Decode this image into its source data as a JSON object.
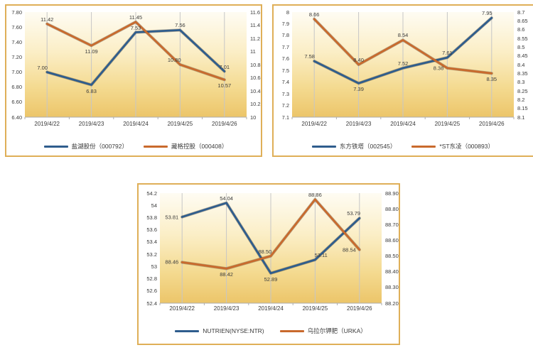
{
  "page": {
    "background": "#ffffff"
  },
  "styles": {
    "panel_border": "#dfaf58",
    "grid_color": "#c6c6c6",
    "axis_line_color": "#adadad",
    "axis_text_color": "#3a3a3a",
    "blue_series_color": "#2f5d8d",
    "orange_series_color": "#c96a2d",
    "plot_gradient": [
      "#fefcf3",
      "#fbeec6",
      "#f4da90",
      "#ecc569"
    ]
  },
  "chart_data": [
    {
      "type": "line",
      "title": "",
      "xlabel": "",
      "ylabel": "",
      "grid": "vertical-only",
      "legend_position": "bottom",
      "categories": [
        "2019/4/22",
        "2019/4/23",
        "2019/4/24",
        "2019/4/25",
        "2019/4/26"
      ],
      "left_axis": {
        "min": 6.4,
        "max": 7.8,
        "ticks": [
          "7.80",
          "7.60",
          "7.40",
          "7.20",
          "7.00",
          "6.80",
          "6.60",
          "6.40"
        ]
      },
      "right_axis": {
        "min": 10,
        "max": 11.6,
        "ticks": [
          "11.6",
          "11.4",
          "11.2",
          "11",
          "10.8",
          "10.6",
          "10.4",
          "10.2",
          "10"
        ]
      },
      "series": [
        {
          "name": "盐湖股份（000792）",
          "axis": "left",
          "color": "#2f5d8d",
          "values": [
            7.0,
            6.83,
            7.53,
            7.56,
            7.01
          ],
          "labels": [
            "7.00",
            "6.83",
            "7.53",
            "7.56",
            "7.01"
          ],
          "label_pos": [
            "tl",
            "b",
            "t",
            "t",
            "t"
          ]
        },
        {
          "name": "藏格控股（000408）",
          "axis": "right",
          "color": "#c96a2d",
          "values": [
            11.42,
            11.09,
            11.45,
            10.8,
            10.57
          ],
          "labels": [
            "11.42",
            "11.09",
            "11.45",
            "10.80",
            "10.57"
          ],
          "label_pos": [
            "t",
            "b",
            "t",
            "tl",
            "b"
          ]
        }
      ]
    },
    {
      "type": "line",
      "title": "",
      "xlabel": "",
      "ylabel": "",
      "grid": "vertical-only",
      "legend_position": "bottom",
      "categories": [
        "2019/4/22",
        "2019/4/23",
        "2019/4/24",
        "2019/4/25",
        "2019/4/26"
      ],
      "left_axis": {
        "min": 7.1,
        "max": 8.0,
        "ticks": [
          "8",
          "7.9",
          "7.8",
          "7.7",
          "7.6",
          "7.5",
          "7.4",
          "7.3",
          "7.2",
          "7.1"
        ]
      },
      "right_axis": {
        "min": 8.1,
        "max": 8.7,
        "ticks": [
          "8.7",
          "8.65",
          "8.6",
          "8.55",
          "8.5",
          "8.45",
          "8.4",
          "8.35",
          "8.3",
          "8.25",
          "8.2",
          "8.15",
          "8.1"
        ]
      },
      "series": [
        {
          "name": "东方铁塔（002545）",
          "axis": "left",
          "color": "#2f5d8d",
          "values": [
            7.58,
            7.39,
            7.52,
            7.61,
            7.95
          ],
          "labels": [
            "7.58",
            "7.39",
            "7.52",
            "7.61",
            "7.95"
          ],
          "label_pos": [
            "tl",
            "b",
            "t",
            "t",
            "tl"
          ]
        },
        {
          "name": "*ST东凌（000893）",
          "axis": "right",
          "color": "#c96a2d",
          "values": [
            8.66,
            8.4,
            8.54,
            8.38,
            8.35
          ],
          "labels": [
            "8.66",
            "8.40",
            "8.54",
            "8.38",
            "8.35"
          ],
          "label_pos": [
            "t",
            "t",
            "t",
            "l",
            "b"
          ]
        }
      ]
    },
    {
      "type": "line",
      "title": "",
      "xlabel": "",
      "ylabel": "",
      "grid": "vertical-only",
      "legend_position": "bottom",
      "categories": [
        "2019/4/22",
        "2019/4/23",
        "2019/4/24",
        "2019/4/25",
        "2019/4/26"
      ],
      "left_axis": {
        "min": 52.4,
        "max": 54.2,
        "ticks": [
          "54.2",
          "54",
          "53.8",
          "53.6",
          "53.4",
          "53.2",
          "53",
          "52.8",
          "52.6",
          "52.4"
        ]
      },
      "right_axis": {
        "min": 88.2,
        "max": 88.9,
        "ticks": [
          "88.90",
          "88.80",
          "88.70",
          "88.60",
          "88.50",
          "88.40",
          "88.30",
          "88.20"
        ]
      },
      "series": [
        {
          "name": "NUTRIEN(NYSE:NTR)",
          "axis": "left",
          "color": "#2f5d8d",
          "values": [
            53.81,
            54.04,
            52.89,
            53.11,
            53.79
          ],
          "labels": [
            "53.81",
            "54.04",
            "52.89",
            "53.11",
            "53.79"
          ],
          "label_pos": [
            "l",
            "t",
            "b",
            "tr",
            "tl"
          ]
        },
        {
          "name": "乌拉尔钾肥（URKA）",
          "axis": "right",
          "color": "#c96a2d",
          "values": [
            88.46,
            88.42,
            88.5,
            88.86,
            88.54
          ],
          "labels": [
            "88.46",
            "88.42",
            "88.50",
            "88.86",
            "88.54"
          ],
          "label_pos": [
            "l",
            "b",
            "tl",
            "t",
            "l"
          ]
        }
      ]
    }
  ]
}
